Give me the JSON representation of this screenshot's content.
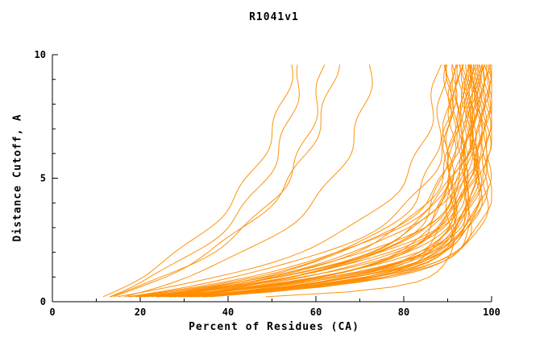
{
  "title": "R1041v1",
  "colors": {
    "curve": "#FF8C00",
    "axis": "#000000",
    "background": "#FFFFFF",
    "text": "#000000"
  },
  "chart_data": {
    "type": "line",
    "title": "R1041v1",
    "xlabel": "Percent of Residues (CA)",
    "ylabel": "Distance Cutoff, A",
    "xlim": [
      0,
      100
    ],
    "ylim": [
      0,
      10
    ],
    "x_ticks": [
      0,
      20,
      40,
      60,
      80,
      100
    ],
    "x_minor_tick_step": 10,
    "y_ticks": [
      0,
      5,
      10
    ],
    "y_minor_tick_step": 1,
    "grid": false,
    "legend": "none",
    "series_color": "#FF8C00",
    "n_series": 48,
    "series_format": [
      "start_x_percent_at_cutoff_0.2",
      "end_x_percent_at_cutoff_9.6",
      "shape_k"
    ],
    "curve_model": "x(y) = start + (end-start)*(1-exp(-k*y))/(1-exp(-k*10)) for y in [0.2, 9.6]",
    "series": [
      [
        9,
        55,
        0.25
      ],
      [
        10,
        57,
        0.3
      ],
      [
        10,
        62,
        0.33
      ],
      [
        11,
        65,
        0.28
      ],
      [
        12,
        73,
        0.35
      ],
      [
        14,
        90.5,
        3.0
      ],
      [
        8,
        88,
        0.45
      ],
      [
        10,
        89,
        0.6
      ],
      [
        12,
        90,
        0.8
      ],
      [
        14,
        90,
        1.0
      ],
      [
        16,
        91,
        1.2
      ],
      [
        18,
        91,
        1.4
      ],
      [
        9,
        92,
        0.5
      ],
      [
        11,
        92,
        0.7
      ],
      [
        13,
        92,
        0.9
      ],
      [
        15,
        93,
        1.1
      ],
      [
        17,
        93,
        1.3
      ],
      [
        19,
        93,
        0.55
      ],
      [
        8,
        94,
        0.75
      ],
      [
        10,
        94,
        0.95
      ],
      [
        12,
        94,
        1.15
      ],
      [
        14,
        94,
        1.35
      ],
      [
        16,
        95,
        0.5
      ],
      [
        18,
        95,
        0.65
      ],
      [
        7,
        95,
        0.85
      ],
      [
        9,
        95,
        1.05
      ],
      [
        11,
        95,
        1.25
      ],
      [
        13,
        96,
        1.45
      ],
      [
        15,
        96,
        0.6
      ],
      [
        17,
        96,
        0.8
      ],
      [
        19,
        96,
        1.0
      ],
      [
        8,
        96,
        1.2
      ],
      [
        10,
        97,
        1.4
      ],
      [
        12,
        97,
        0.55
      ],
      [
        14,
        97,
        0.75
      ],
      [
        16,
        97,
        0.95
      ],
      [
        18,
        97,
        1.15
      ],
      [
        9,
        98,
        0.5
      ],
      [
        11,
        98,
        0.7
      ],
      [
        13,
        98,
        0.9
      ],
      [
        15,
        98,
        1.1
      ],
      [
        7,
        99,
        0.6
      ],
      [
        10,
        99,
        0.85
      ],
      [
        13,
        99,
        1.05
      ],
      [
        16,
        99,
        1.3
      ],
      [
        8,
        100,
        0.65
      ],
      [
        12,
        100,
        0.9
      ],
      [
        15,
        100,
        1.15
      ]
    ]
  }
}
